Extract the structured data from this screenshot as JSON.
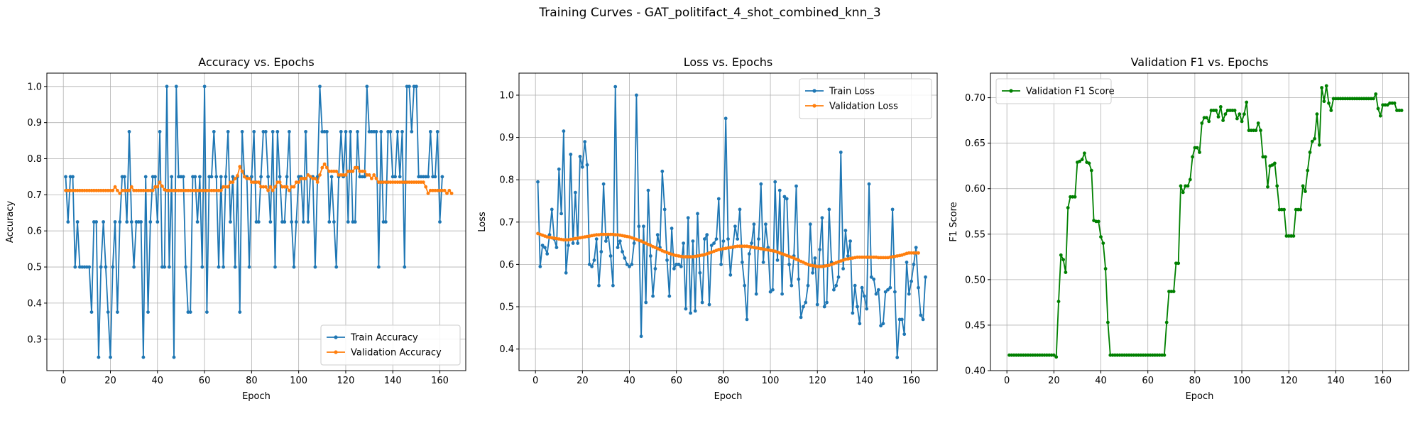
{
  "figure_title": "Training Curves - GAT_politifact_4_shot_combined_knn_3",
  "colors": {
    "train": "#1f77b4",
    "validation": "#ff7f0e",
    "f1": "#008000",
    "grid": "#b0b0b0"
  },
  "chart_data": [
    {
      "type": "line",
      "title": "Accuracy vs. Epochs",
      "xlabel": "Epoch",
      "ylabel": "Accuracy",
      "xlim": [
        -7,
        171
      ],
      "ylim": [
        0.213,
        1.037
      ],
      "xticks": [
        0,
        20,
        40,
        60,
        80,
        100,
        120,
        140,
        160
      ],
      "yticks": [
        0.3,
        0.4,
        0.5,
        0.6,
        0.7,
        0.8,
        0.9,
        1.0
      ],
      "ytick_labels": [
        "0.3",
        "0.4",
        "0.5",
        "0.6",
        "0.7",
        "0.8",
        "0.9",
        "1.0"
      ],
      "grid": true,
      "legend_position": "lower-right",
      "series": [
        {
          "name": "Train Accuracy",
          "color": "#1f77b4",
          "values": [
            0.75,
            0.625,
            0.75,
            0.75,
            0.5,
            0.625,
            0.5,
            0.5,
            0.5,
            0.5,
            0.5,
            0.375,
            0.625,
            0.625,
            0.25,
            0.5,
            0.625,
            0.5,
            0.375,
            0.25,
            0.5,
            0.625,
            0.375,
            0.625,
            0.75,
            0.75,
            0.625,
            0.875,
            0.625,
            0.5,
            0.625,
            0.625,
            0.625,
            0.25,
            0.75,
            0.375,
            0.625,
            0.75,
            0.75,
            0.625,
            0.875,
            0.5,
            0.5,
            1.0,
            0.5,
            0.75,
            0.25,
            1.0,
            0.75,
            0.75,
            0.75,
            0.5,
            0.375,
            0.375,
            0.75,
            0.75,
            0.625,
            0.75,
            0.5,
            1.0,
            0.375,
            0.75,
            0.75,
            0.875,
            0.75,
            0.5,
            0.75,
            0.5,
            0.75,
            0.875,
            0.625,
            0.75,
            0.5,
            0.75,
            0.375,
            0.875,
            0.75,
            0.75,
            0.5,
            0.75,
            0.875,
            0.625,
            0.625,
            0.75,
            0.875,
            0.875,
            0.75,
            0.625,
            0.875,
            0.5,
            0.875,
            0.75,
            0.625,
            0.625,
            0.75,
            0.875,
            0.625,
            0.5,
            0.625,
            0.75,
            0.75,
            0.625,
            0.875,
            0.625,
            0.75,
            0.75,
            0.5,
            0.75,
            1.0,
            0.875,
            0.875,
            0.875,
            0.625,
            0.75,
            0.625,
            0.5,
            0.75,
            0.875,
            0.75,
            0.875,
            0.625,
            0.875,
            0.625,
            0.625,
            0.875,
            0.75,
            0.75,
            0.75,
            1.0,
            0.875,
            0.875,
            0.875,
            0.875,
            0.5,
            0.875,
            0.625,
            0.625,
            0.875,
            0.875,
            0.75,
            0.75,
            0.875,
            0.75,
            0.875,
            0.5,
            1.0,
            1.0,
            0.875,
            1.0,
            1.0,
            0.75,
            0.75,
            0.75,
            0.75,
            0.75,
            0.875,
            0.75,
            0.75,
            0.875,
            0.625,
            0.75
          ]
        },
        {
          "name": "Validation Accuracy",
          "color": "#ff7f0e",
          "values": [
            0.712,
            0.712,
            0.712,
            0.712,
            0.712,
            0.712,
            0.712,
            0.712,
            0.712,
            0.712,
            0.712,
            0.712,
            0.712,
            0.712,
            0.712,
            0.712,
            0.712,
            0.712,
            0.712,
            0.712,
            0.712,
            0.722,
            0.712,
            0.704,
            0.712,
            0.712,
            0.712,
            0.712,
            0.722,
            0.712,
            0.712,
            0.712,
            0.712,
            0.712,
            0.712,
            0.712,
            0.712,
            0.712,
            0.722,
            0.722,
            0.735,
            0.724,
            0.714,
            0.712,
            0.712,
            0.712,
            0.712,
            0.712,
            0.712,
            0.712,
            0.712,
            0.712,
            0.712,
            0.712,
            0.712,
            0.712,
            0.712,
            0.712,
            0.712,
            0.712,
            0.712,
            0.712,
            0.712,
            0.712,
            0.712,
            0.712,
            0.712,
            0.722,
            0.722,
            0.722,
            0.735,
            0.735,
            0.745,
            0.753,
            0.778,
            0.765,
            0.75,
            0.745,
            0.745,
            0.735,
            0.735,
            0.735,
            0.735,
            0.722,
            0.722,
            0.722,
            0.712,
            0.722,
            0.712,
            0.722,
            0.735,
            0.735,
            0.722,
            0.722,
            0.722,
            0.712,
            0.722,
            0.722,
            0.735,
            0.735,
            0.745,
            0.745,
            0.745,
            0.755,
            0.75,
            0.745,
            0.745,
            0.735,
            0.755,
            0.775,
            0.785,
            0.775,
            0.765,
            0.765,
            0.765,
            0.765,
            0.755,
            0.755,
            0.755,
            0.755,
            0.765,
            0.765,
            0.765,
            0.775,
            0.775,
            0.765,
            0.765,
            0.765,
            0.755,
            0.755,
            0.745,
            0.755,
            0.745,
            0.735,
            0.735,
            0.735,
            0.735,
            0.735,
            0.735,
            0.735,
            0.735,
            0.735,
            0.735,
            0.735,
            0.735,
            0.735,
            0.735,
            0.735,
            0.735,
            0.735,
            0.735,
            0.735,
            0.735,
            0.722,
            0.704,
            0.712,
            0.712,
            0.712,
            0.712,
            0.712,
            0.712,
            0.712,
            0.704,
            0.712,
            0.704
          ]
        }
      ]
    },
    {
      "type": "line",
      "title": "Loss vs. Epochs",
      "xlabel": "Epoch",
      "ylabel": "Loss",
      "xlim": [
        -7,
        171
      ],
      "ylim": [
        0.349,
        1.052
      ],
      "xticks": [
        0,
        20,
        40,
        60,
        80,
        100,
        120,
        140,
        160
      ],
      "yticks": [
        0.4,
        0.5,
        0.6,
        0.7,
        0.8,
        0.9,
        1.0
      ],
      "ytick_labels": [
        "0.4",
        "0.5",
        "0.6",
        "0.7",
        "0.8",
        "0.9",
        "1.0"
      ],
      "grid": true,
      "legend_position": "upper-right",
      "series": [
        {
          "name": "Train Loss",
          "color": "#1f77b4",
          "values": [
            0.795,
            0.595,
            0.645,
            0.64,
            0.625,
            0.67,
            0.73,
            0.66,
            0.64,
            0.825,
            0.72,
            0.915,
            0.58,
            0.645,
            0.86,
            0.65,
            0.77,
            0.65,
            0.855,
            0.83,
            0.89,
            0.835,
            0.6,
            0.595,
            0.61,
            0.66,
            0.55,
            0.63,
            0.79,
            0.655,
            0.67,
            0.62,
            0.55,
            1.02,
            0.64,
            0.655,
            0.63,
            0.615,
            0.6,
            0.595,
            0.6,
            0.65,
            1.0,
            0.69,
            0.43,
            0.69,
            0.51,
            0.775,
            0.62,
            0.525,
            0.59,
            0.67,
            0.64,
            0.82,
            0.73,
            0.61,
            0.525,
            0.685,
            0.59,
            0.6,
            0.6,
            0.595,
            0.65,
            0.495,
            0.71,
            0.485,
            0.655,
            0.49,
            0.72,
            0.58,
            0.51,
            0.66,
            0.67,
            0.505,
            0.645,
            0.65,
            0.66,
            0.755,
            0.6,
            0.655,
            0.945,
            0.66,
            0.575,
            0.64,
            0.69,
            0.66,
            0.73,
            0.605,
            0.55,
            0.47,
            0.625,
            0.65,
            0.695,
            0.53,
            0.66,
            0.79,
            0.605,
            0.695,
            0.64,
            0.535,
            0.54,
            0.795,
            0.61,
            0.775,
            0.53,
            0.76,
            0.755,
            0.6,
            0.55,
            0.62,
            0.785,
            0.565,
            0.475,
            0.5,
            0.51,
            0.55,
            0.695,
            0.58,
            0.615,
            0.505,
            0.635,
            0.71,
            0.5,
            0.51,
            0.73,
            0.605,
            0.54,
            0.55,
            0.57,
            0.865,
            0.59,
            0.68,
            0.62,
            0.655,
            0.485,
            0.55,
            0.5,
            0.46,
            0.545,
            0.525,
            0.495,
            0.79,
            0.57,
            0.565,
            0.53,
            0.54,
            0.455,
            0.46,
            0.535,
            0.54,
            0.545,
            0.73,
            0.535,
            0.38,
            0.47,
            0.47,
            0.435,
            0.605,
            0.53,
            0.56,
            0.6,
            0.64,
            0.545,
            0.48,
            0.47,
            0.57
          ]
        },
        {
          "name": "Validation Loss",
          "color": "#ff7f0e",
          "values": [
            0.673,
            0.671,
            0.669,
            0.667,
            0.665,
            0.664,
            0.663,
            0.662,
            0.661,
            0.66,
            0.659,
            0.658,
            0.658,
            0.658,
            0.659,
            0.66,
            0.661,
            0.662,
            0.663,
            0.664,
            0.665,
            0.666,
            0.667,
            0.668,
            0.669,
            0.67,
            0.67,
            0.671,
            0.671,
            0.671,
            0.671,
            0.671,
            0.671,
            0.67,
            0.67,
            0.669,
            0.668,
            0.667,
            0.666,
            0.665,
            0.663,
            0.661,
            0.659,
            0.657,
            0.655,
            0.652,
            0.65,
            0.647,
            0.645,
            0.642,
            0.64,
            0.637,
            0.635,
            0.632,
            0.63,
            0.628,
            0.626,
            0.624,
            0.622,
            0.621,
            0.62,
            0.619,
            0.618,
            0.618,
            0.618,
            0.618,
            0.618,
            0.619,
            0.62,
            0.621,
            0.622,
            0.623,
            0.625,
            0.627,
            0.629,
            0.631,
            0.633,
            0.635,
            0.636,
            0.637,
            0.638,
            0.639,
            0.64,
            0.641,
            0.642,
            0.643,
            0.643,
            0.643,
            0.643,
            0.643,
            0.642,
            0.641,
            0.64,
            0.639,
            0.638,
            0.637,
            0.636,
            0.635,
            0.634,
            0.633,
            0.632,
            0.631,
            0.629,
            0.627,
            0.625,
            0.623,
            0.621,
            0.619,
            0.617,
            0.615,
            0.612,
            0.61,
            0.607,
            0.605,
            0.602,
            0.6,
            0.598,
            0.597,
            0.596,
            0.595,
            0.595,
            0.595,
            0.596,
            0.597,
            0.598,
            0.6,
            0.602,
            0.604,
            0.606,
            0.608,
            0.61,
            0.612,
            0.613,
            0.614,
            0.615,
            0.616,
            0.617,
            0.617,
            0.617,
            0.617,
            0.617,
            0.617,
            0.617,
            0.617,
            0.617,
            0.616,
            0.616,
            0.616,
            0.616,
            0.616,
            0.617,
            0.618,
            0.619,
            0.62,
            0.621,
            0.622,
            0.624,
            0.626,
            0.627,
            0.627,
            0.627,
            0.627,
            0.627
          ]
        }
      ]
    },
    {
      "type": "line",
      "title": "Validation F1 vs. Epochs",
      "xlabel": "Epoch",
      "ylabel": "F1 Score",
      "xlim": [
        -7,
        171
      ],
      "ylim": [
        0.4,
        0.727
      ],
      "xticks": [
        0,
        20,
        40,
        60,
        80,
        100,
        120,
        140,
        160
      ],
      "yticks": [
        0.4,
        0.45,
        0.5,
        0.55,
        0.6,
        0.65,
        0.7
      ],
      "ytick_labels": [
        "0.40",
        "0.45",
        "0.50",
        "0.55",
        "0.60",
        "0.65",
        "0.70"
      ],
      "grid": true,
      "legend_position": "upper-left",
      "series": [
        {
          "name": "Validation F1 Score",
          "color": "#008000",
          "values": [
            0.417,
            0.417,
            0.417,
            0.417,
            0.417,
            0.417,
            0.417,
            0.417,
            0.417,
            0.417,
            0.417,
            0.417,
            0.417,
            0.417,
            0.417,
            0.417,
            0.417,
            0.417,
            0.417,
            0.417,
            0.415,
            0.476,
            0.527,
            0.522,
            0.508,
            0.579,
            0.591,
            0.591,
            0.591,
            0.629,
            0.63,
            0.632,
            0.639,
            0.629,
            0.628,
            0.62,
            0.565,
            0.564,
            0.564,
            0.547,
            0.54,
            0.512,
            0.453,
            0.417,
            0.417,
            0.417,
            0.417,
            0.417,
            0.417,
            0.417,
            0.417,
            0.417,
            0.417,
            0.417,
            0.417,
            0.417,
            0.417,
            0.417,
            0.417,
            0.417,
            0.417,
            0.417,
            0.417,
            0.417,
            0.417,
            0.417,
            0.417,
            0.453,
            0.487,
            0.487,
            0.487,
            0.518,
            0.518,
            0.603,
            0.596,
            0.603,
            0.603,
            0.61,
            0.635,
            0.645,
            0.645,
            0.64,
            0.672,
            0.678,
            0.678,
            0.674,
            0.686,
            0.686,
            0.686,
            0.679,
            0.69,
            0.675,
            0.682,
            0.686,
            0.686,
            0.686,
            0.686,
            0.677,
            0.682,
            0.674,
            0.682,
            0.695,
            0.664,
            0.664,
            0.664,
            0.664,
            0.672,
            0.664,
            0.635,
            0.635,
            0.602,
            0.625,
            0.626,
            0.628,
            0.603,
            0.577,
            0.577,
            0.577,
            0.548,
            0.548,
            0.548,
            0.548,
            0.577,
            0.577,
            0.577,
            0.603,
            0.597,
            0.62,
            0.64,
            0.652,
            0.655,
            0.682,
            0.648,
            0.711,
            0.696,
            0.713,
            0.694,
            0.686,
            0.699,
            0.699,
            0.699,
            0.699,
            0.699,
            0.699,
            0.699,
            0.699,
            0.699,
            0.699,
            0.699,
            0.699,
            0.699,
            0.699,
            0.699,
            0.699,
            0.699,
            0.699,
            0.704,
            0.688,
            0.68,
            0.692,
            0.692,
            0.692,
            0.694,
            0.694,
            0.694,
            0.686,
            0.686,
            0.686
          ]
        }
      ]
    }
  ]
}
